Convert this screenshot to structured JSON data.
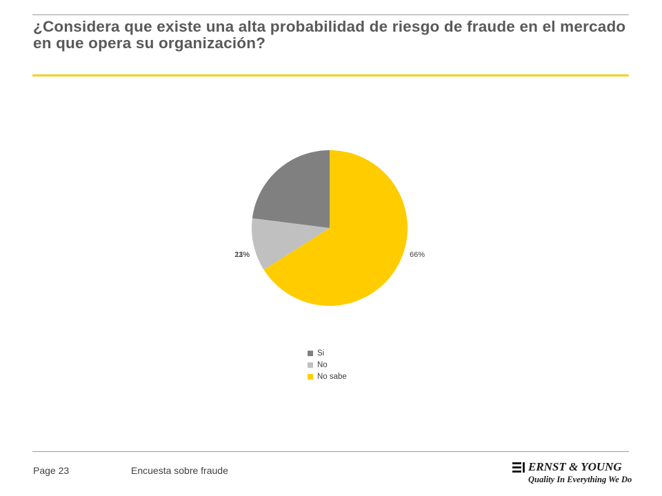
{
  "header": {
    "title": "¿Considera que existe una alta probabilidad de riesgo de fraude en el mercado en que opera su organización?"
  },
  "chart_data": {
    "type": "pie",
    "categories": [
      "Si",
      "No",
      "No sabe"
    ],
    "values": [
      23,
      11,
      66
    ],
    "labels": [
      "23%",
      "11%",
      "66%"
    ],
    "colors": [
      "#808080",
      "#c0c0c0",
      "#ffcc00"
    ],
    "legend_position": "bottom"
  },
  "footer": {
    "page": "Page 23",
    "title": "Encuesta sobre fraude",
    "logo_name": "ERNST & YOUNG",
    "logo_tagline": "Quality In Everything We Do",
    "logo_icon": "ey-logo-icon"
  }
}
